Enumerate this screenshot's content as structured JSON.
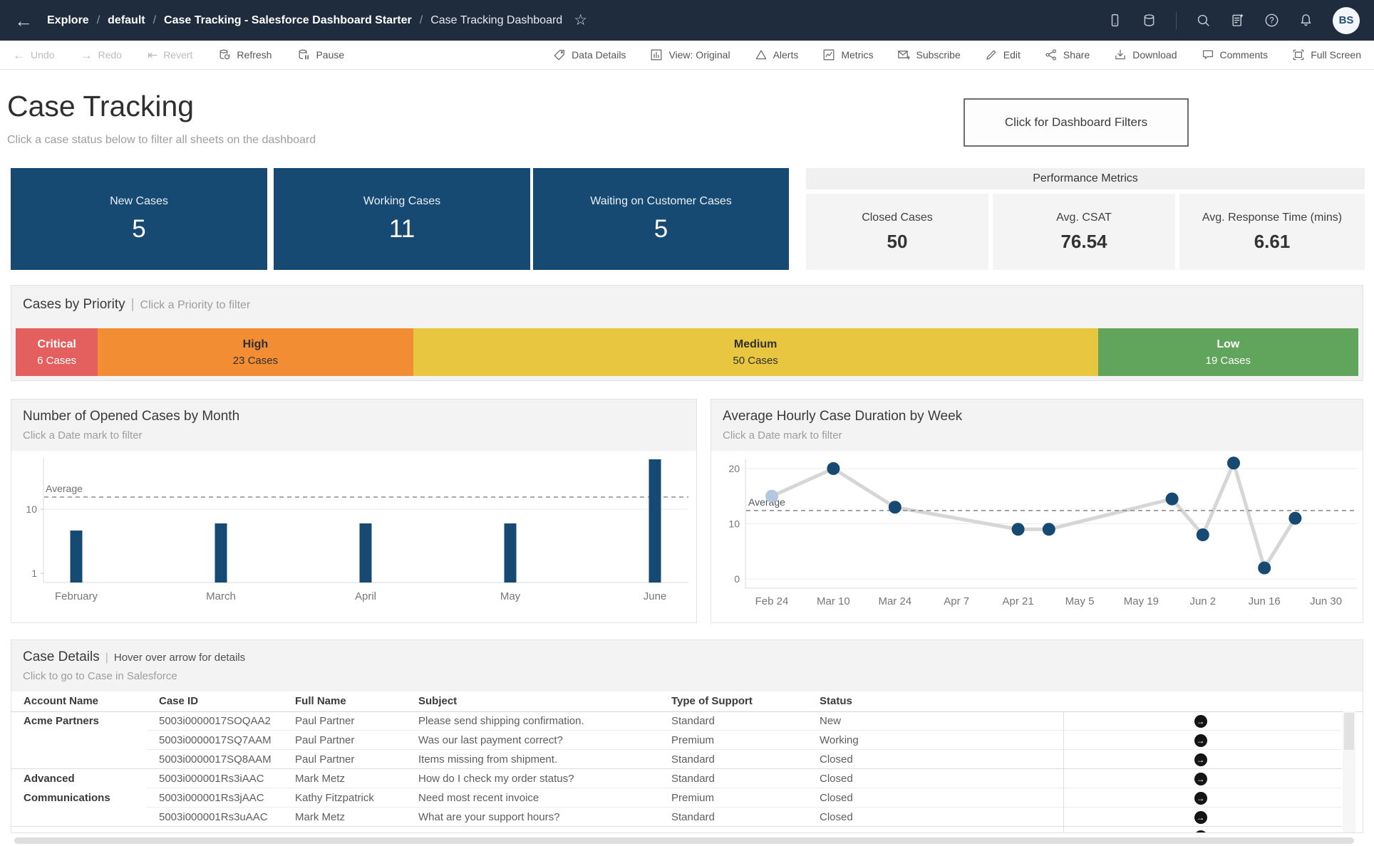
{
  "topbar": {
    "back_icon": "←",
    "breadcrumb": [
      "Explore",
      "default",
      "Case Tracking - Salesforce Dashboard Starter",
      "Case Tracking Dashboard"
    ],
    "separator": "/",
    "star_icon": "☆",
    "avatar_initials": "BS"
  },
  "toolbar": {
    "undo": "Undo",
    "redo": "Redo",
    "revert": "Revert",
    "refresh": "Refresh",
    "pause": "Pause",
    "undo_icon": "←",
    "redo_icon": "→",
    "revert_icon": "⇤",
    "data_details": "Data Details",
    "view_original": "View: Original",
    "alerts": "Alerts",
    "metrics": "Metrics",
    "subscribe": "Subscribe",
    "edit": "Edit",
    "share": "Share",
    "download": "Download",
    "comments": "Comments",
    "full_screen": "Full Screen"
  },
  "header": {
    "title": "Case Tracking",
    "subtitle": "Click a case status below to filter all sheets on the dashboard",
    "filters_button": "Click for Dashboard Filters"
  },
  "kpis": [
    {
      "label": "New Cases",
      "value": "5"
    },
    {
      "label": "Working Cases",
      "value": "11"
    },
    {
      "label": "Waiting on Customer Cases",
      "value": "5"
    }
  ],
  "performance": {
    "title": "Performance Metrics",
    "metrics": [
      {
        "label": "Closed Cases",
        "value": "50"
      },
      {
        "label": "Avg. CSAT",
        "value": "76.54"
      },
      {
        "label": "Avg. Response Time (mins)",
        "value": "6.61"
      }
    ]
  },
  "priority": {
    "title": "Cases by Priority",
    "separator": "|",
    "hint": "Click a Priority to filter",
    "segments": [
      {
        "label": "Critical",
        "count": "6 Cases",
        "value": 6,
        "color": "#e4605e",
        "text_color": "#ffffff"
      },
      {
        "label": "High",
        "count": "23 Cases",
        "value": 23,
        "color": "#f28d33",
        "text_color": "#2f2f2f"
      },
      {
        "label": "Medium",
        "count": "50 Cases",
        "value": 50,
        "color": "#e9c63f",
        "text_color": "#2f2f2f"
      },
      {
        "label": "Low",
        "count": "19 Cases",
        "value": 19,
        "color": "#61a45c",
        "text_color": "#ffffff"
      }
    ]
  },
  "chart_data": [
    {
      "type": "bar",
      "title": "Number of Opened Cases by Month",
      "subtitle": "Click a Date mark to filter",
      "categories": [
        "February",
        "March",
        "April",
        "May",
        "June"
      ],
      "values": [
        7,
        8,
        8,
        8,
        17
      ],
      "average": 11.7,
      "average_label": "Average",
      "yticks": [
        1,
        10
      ],
      "ylim": [
        0,
        18
      ],
      "bar_color": "#164a73",
      "grid": true,
      "xlabel": "",
      "ylabel": ""
    },
    {
      "type": "line",
      "title": "Average Hourly Case Duration by Week",
      "subtitle": "Click a Date mark to filter",
      "x_tick_labels": [
        "Feb 24",
        "Mar 10",
        "Mar 24",
        "Apr 7",
        "Apr 21",
        "May 5",
        "May 19",
        "Jun 2",
        "Jun 16",
        "Jun 30"
      ],
      "x_tick_weeks": [
        0,
        2,
        4,
        6,
        8,
        10,
        12,
        14,
        16,
        18
      ],
      "points": [
        {
          "week": 0,
          "value": 15,
          "highlight": true
        },
        {
          "week": 2,
          "value": 20
        },
        {
          "week": 4,
          "value": 13
        },
        {
          "week": 8,
          "value": 9
        },
        {
          "week": 9,
          "value": 9
        },
        {
          "week": 13,
          "value": 14.5
        },
        {
          "week": 14,
          "value": 8
        },
        {
          "week": 15,
          "value": 21
        },
        {
          "week": 16,
          "value": 2
        },
        {
          "week": 17,
          "value": 11
        }
      ],
      "average": 12.4,
      "average_label": "Average",
      "yticks": [
        0,
        10,
        20
      ],
      "ylim": [
        -2,
        24
      ],
      "line_color": "#d6d6d6",
      "marker_color": "#164a73",
      "highlight_color": "#b3c8de",
      "grid": true,
      "xlabel": "",
      "ylabel": ""
    }
  ],
  "case_details": {
    "title": "Case Details",
    "separator": "|",
    "hint": "Hover over arrow for details",
    "subtitle": "Click to go to Case in Salesforce",
    "columns": [
      "Account Name",
      "Case ID",
      "Full Name",
      "Subject",
      "Type of Support",
      "Status"
    ],
    "arrow_icon": "→",
    "groups": [
      {
        "account": "Acme Partners",
        "rows": [
          {
            "case_id": "5003i0000017SOQAA2",
            "full_name": "Paul Partner",
            "subject": "Please send shipping confirmation.",
            "type": "Standard",
            "status": "New"
          },
          {
            "case_id": "5003i0000017SQ7AAM",
            "full_name": "Paul Partner",
            "subject": "Was our last payment correct?",
            "type": "Premium",
            "status": "Working"
          },
          {
            "case_id": "5003i0000017SQ8AAM",
            "full_name": "Paul Partner",
            "subject": "Items missing from shipment.",
            "type": "Standard",
            "status": "Closed"
          }
        ]
      },
      {
        "account": "Advanced Communications",
        "rows": [
          {
            "case_id": "5003i000001Rs3iAAC",
            "full_name": "Mark Metz",
            "subject": "How do I check my order status?",
            "type": "Standard",
            "status": "Closed"
          },
          {
            "case_id": "5003i000001Rs3jAAC",
            "full_name": "Kathy Fitzpatrick",
            "subject": "Need most recent invoice",
            "type": "Premium",
            "status": "Closed"
          },
          {
            "case_id": "5003i000001Rs3uAAC",
            "full_name": "Mark Metz",
            "subject": "What are your support hours?",
            "type": "Standard",
            "status": "Closed"
          }
        ]
      }
    ],
    "partial_row_visible": true
  },
  "colors": {
    "topbar_bg": "#1e2c3d",
    "navy": "#164a73",
    "panel_header_bg": "#f3f3f3",
    "average_line": "#8f8f8f"
  }
}
